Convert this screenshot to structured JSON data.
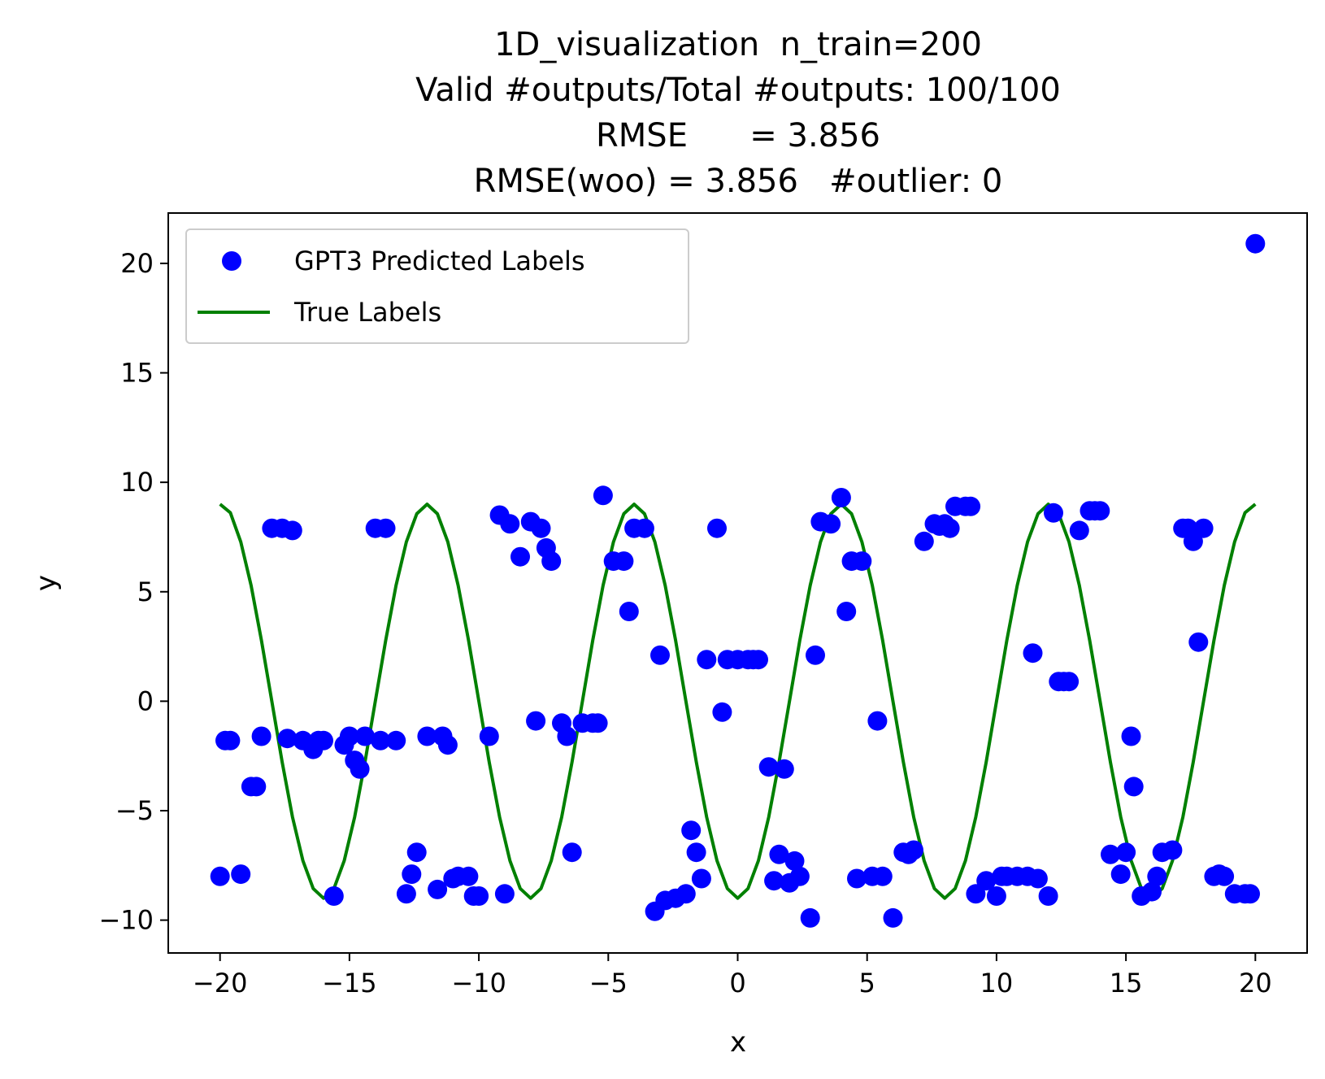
{
  "chart_data": {
    "type": "scatter",
    "title_lines": [
      "1D_visualization  n_train=200",
      "Valid #outputs/Total #outputs: 100/100",
      "RMSE      = 3.856",
      "RMSE(woo) = 3.856   #outlier: 0"
    ],
    "xlabel": "x",
    "ylabel": "y",
    "xlim": [
      -22,
      22
    ],
    "ylim": [
      -11.5,
      22.3
    ],
    "xticks": [
      -20,
      -15,
      -10,
      -5,
      0,
      5,
      10,
      15,
      20
    ],
    "yticks": [
      -10,
      -5,
      0,
      5,
      10,
      15,
      20
    ],
    "xtick_labels": [
      "−20",
      "−15",
      "−10",
      "−5",
      "0",
      "5",
      "10",
      "15",
      "20"
    ],
    "ytick_labels": [
      "−10",
      "−5",
      "0",
      "5",
      "10",
      "15",
      "20"
    ],
    "grid": false,
    "legend_position": "top-left",
    "legend": [
      "GPT3 Predicted Labels",
      "True Labels"
    ],
    "colors": {
      "predicted": "#0000ff",
      "true": "#008000"
    },
    "series": [
      {
        "name": "GPT3 Predicted Labels",
        "kind": "scatter",
        "x": [
          -20.0,
          -19.6,
          -19.2,
          -18.8,
          -18.4,
          -18.0,
          -17.6,
          -17.2,
          -16.8,
          -16.4,
          -16.0,
          -15.6,
          -15.2,
          -14.8,
          -14.4,
          -14.0,
          -13.6,
          -13.2,
          -12.8,
          -12.4,
          -12.0,
          -11.6,
          -11.2,
          -10.8,
          -10.4,
          -10.0,
          -9.6,
          -9.2,
          -8.8,
          -8.4,
          -8.0,
          -7.6,
          -7.2,
          -6.8,
          -6.4,
          -6.0,
          -5.6,
          -5.2,
          -4.8,
          -4.4,
          -4.0,
          -3.6,
          -3.2,
          -2.8,
          -2.4,
          -2.0,
          -1.6,
          -1.2,
          -0.8,
          -0.4,
          0.0,
          0.4,
          0.8,
          1.2,
          1.6,
          2.0,
          2.4,
          2.8,
          3.2,
          3.6,
          4.0,
          4.4,
          4.8,
          5.2,
          5.6,
          6.0,
          6.4,
          6.8,
          7.2,
          7.6,
          8.0,
          8.4,
          8.8,
          9.2,
          9.6,
          10.0,
          10.4,
          10.8,
          11.2,
          11.6,
          12.0,
          12.4,
          12.8,
          13.2,
          13.6,
          14.0,
          14.4,
          14.8,
          15.2,
          15.6,
          16.0,
          16.4,
          16.8,
          17.2,
          17.6,
          18.0,
          18.4,
          18.8,
          19.2,
          19.6,
          20.0,
          -19.8,
          -18.6,
          -17.4,
          -16.2,
          -15.0,
          -13.8,
          -12.6,
          -11.4,
          -10.2,
          -9.0,
          -7.8,
          -6.6,
          -5.4,
          -4.2,
          -3.0,
          -1.8,
          -0.6,
          0.6,
          1.8,
          3.0,
          4.2,
          5.4,
          6.6,
          7.8,
          9.0,
          10.2,
          11.4,
          12.6,
          13.8,
          15.0,
          16.2,
          17.4,
          18.6,
          19.8,
          -14.6,
          -7.4,
          -1.4,
          1.4,
          4.6,
          8.2,
          15.3,
          17.8,
          2.2,
          -11.0,
          12.2
        ],
        "y": [
          -8.0,
          -1.8,
          -7.9,
          -3.9,
          -1.6,
          7.9,
          7.9,
          7.8,
          -1.8,
          -2.2,
          -1.8,
          -8.9,
          -2.0,
          -2.7,
          -1.6,
          7.9,
          7.9,
          -1.8,
          -8.8,
          -6.9,
          -1.6,
          -8.6,
          -2.0,
          -8.0,
          -8.0,
          -8.9,
          -1.6,
          8.5,
          8.1,
          6.6,
          8.2,
          7.9,
          6.4,
          -1.0,
          -6.9,
          -1.0,
          -1.0,
          9.4,
          6.4,
          6.4,
          7.9,
          7.9,
          -9.6,
          -9.1,
          -9.0,
          -8.8,
          -6.9,
          1.9,
          7.9,
          1.9,
          1.9,
          1.9,
          1.9,
          -3.0,
          -7.0,
          -8.3,
          -8.0,
          -9.9,
          8.2,
          8.1,
          9.3,
          6.4,
          6.4,
          -8.0,
          -8.0,
          -9.9,
          -6.9,
          -6.8,
          7.3,
          8.1,
          8.1,
          8.9,
          8.9,
          -8.8,
          -8.2,
          -8.9,
          -8.0,
          -8.0,
          -8.0,
          -8.1,
          -8.9,
          0.9,
          0.9,
          7.8,
          8.7,
          8.7,
          -7.0,
          -7.9,
          -1.6,
          -8.9,
          -8.7,
          -6.9,
          -6.8,
          7.9,
          7.3,
          7.9,
          -8.0,
          -8.0,
          -8.8,
          -8.8,
          20.9,
          -1.8,
          -3.9,
          -1.7,
          -1.8,
          -1.6,
          -1.8,
          -7.9,
          -1.6,
          -8.9,
          -8.8,
          -0.9,
          -1.6,
          -1.0,
          4.1,
          2.1,
          -5.9,
          -0.5,
          1.9,
          -3.1,
          2.1,
          4.1,
          -0.9,
          -7.0,
          8.0,
          8.9,
          -8.0,
          2.2,
          0.9,
          8.7,
          -6.9,
          -8.0,
          7.9,
          -7.9,
          -8.8,
          -3.1,
          7.0,
          -8.1,
          -8.2,
          -8.1,
          7.9,
          -3.9,
          2.7,
          -7.3,
          -8.1,
          8.6
        ]
      },
      {
        "name": "True Labels",
        "kind": "line",
        "x": [
          -20.0,
          -19.6,
          -19.2,
          -18.8,
          -18.4,
          -18.0,
          -17.6,
          -17.2,
          -16.8,
          -16.4,
          -16.0,
          -15.6,
          -15.2,
          -14.8,
          -14.4,
          -14.0,
          -13.6,
          -13.2,
          -12.8,
          -12.4,
          -12.0,
          -11.6,
          -11.2,
          -10.8,
          -10.4,
          -10.0,
          -9.6,
          -9.2,
          -8.8,
          -8.4,
          -8.0,
          -7.6,
          -7.2,
          -6.8,
          -6.4,
          -6.0,
          -5.6,
          -5.2,
          -4.8,
          -4.4,
          -4.0,
          -3.6,
          -3.2,
          -2.8,
          -2.4,
          -2.0,
          -1.6,
          -1.2,
          -0.8,
          -0.4,
          0.0,
          0.4,
          0.8,
          1.2,
          1.6,
          2.0,
          2.4,
          2.8,
          3.2,
          3.6,
          4.0,
          4.4,
          4.8,
          5.2,
          5.6,
          6.0,
          6.4,
          6.8,
          7.2,
          7.6,
          8.0,
          8.4,
          8.8,
          9.2,
          9.6,
          10.0,
          10.4,
          10.8,
          11.2,
          11.6,
          12.0,
          12.4,
          12.8,
          13.2,
          13.6,
          14.0,
          14.4,
          14.8,
          15.2,
          15.6,
          16.0,
          16.4,
          16.8,
          17.2,
          17.6,
          18.0,
          18.4,
          18.8,
          19.2,
          19.6,
          20.0
        ],
        "y": [
          9.0,
          8.61,
          7.28,
          5.29,
          2.78,
          0.0,
          -2.78,
          -5.29,
          -7.28,
          -8.56,
          -9.0,
          -8.56,
          -7.28,
          -5.29,
          -2.78,
          0.0,
          2.78,
          5.29,
          7.28,
          8.56,
          9.0,
          8.56,
          7.28,
          5.29,
          2.78,
          0.0,
          -2.78,
          -5.29,
          -7.28,
          -8.56,
          -9.0,
          -8.56,
          -7.28,
          -5.29,
          -2.78,
          0.0,
          2.78,
          5.29,
          7.28,
          8.56,
          9.0,
          8.56,
          7.28,
          5.29,
          2.78,
          0.0,
          -2.78,
          -5.29,
          -7.28,
          -8.56,
          -9.0,
          -8.56,
          -7.28,
          -5.29,
          -2.78,
          0.0,
          2.78,
          5.29,
          7.28,
          8.56,
          9.0,
          8.56,
          7.28,
          5.29,
          2.78,
          0.0,
          -2.78,
          -5.29,
          -7.28,
          -8.56,
          -9.0,
          -8.56,
          -7.28,
          -5.29,
          -2.78,
          0.0,
          2.78,
          5.29,
          7.28,
          8.56,
          9.0,
          8.56,
          7.28,
          5.29,
          2.78,
          0.0,
          -2.78,
          -5.29,
          -7.28,
          -8.56,
          -9.0,
          -8.56,
          -7.28,
          -5.29,
          -2.78,
          0.0,
          2.78,
          5.29,
          7.28,
          8.61,
          9.0
        ]
      }
    ]
  }
}
